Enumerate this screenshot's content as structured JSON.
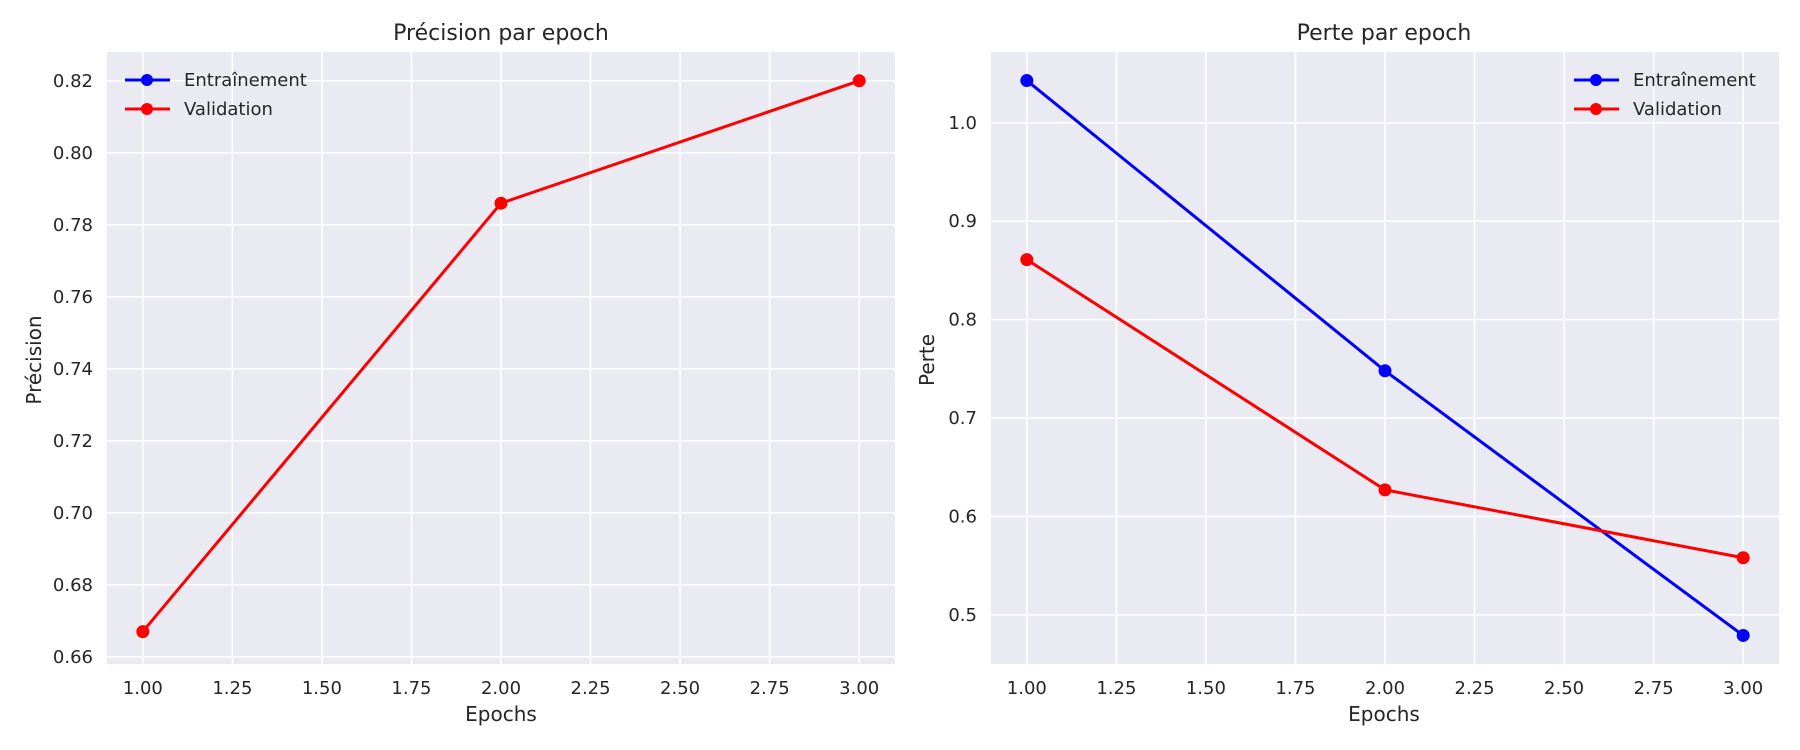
{
  "chart_data": [
    {
      "type": "line",
      "title": "Précision par epoch",
      "xlabel": "Epochs",
      "ylabel": "Précision",
      "xlim": [
        0.9,
        3.1
      ],
      "ylim": [
        0.658,
        0.828
      ],
      "x_ticks": [
        "1.00",
        "1.25",
        "1.50",
        "1.75",
        "2.00",
        "2.25",
        "2.50",
        "2.75",
        "3.00"
      ],
      "y_ticks": [
        "0.66",
        "0.68",
        "0.70",
        "0.72",
        "0.74",
        "0.76",
        "0.78",
        "0.80",
        "0.82"
      ],
      "x": [
        1,
        2,
        3
      ],
      "series": [
        {
          "name": "Entraînement",
          "color": "#0000ff",
          "values": [
            null,
            null,
            null
          ]
        },
        {
          "name": "Validation",
          "color": "#ff0000",
          "values": [
            0.667,
            0.786,
            0.82
          ]
        }
      ],
      "legend": "top-left",
      "grid": true
    },
    {
      "type": "line",
      "title": "Perte par epoch",
      "xlabel": "Epochs",
      "ylabel": "Perte",
      "xlim": [
        0.9,
        3.1
      ],
      "ylim": [
        0.45,
        1.072
      ],
      "x_ticks": [
        "1.00",
        "1.25",
        "1.50",
        "1.75",
        "2.00",
        "2.25",
        "2.50",
        "2.75",
        "3.00"
      ],
      "y_ticks": [
        "0.5",
        "0.6",
        "0.7",
        "0.8",
        "0.9",
        "1.0"
      ],
      "x": [
        1,
        2,
        3
      ],
      "series": [
        {
          "name": "Entraînement",
          "color": "#0000ff",
          "values": [
            1.043,
            0.748,
            0.479
          ]
        },
        {
          "name": "Validation",
          "color": "#ff0000",
          "values": [
            0.861,
            0.627,
            0.558
          ]
        }
      ],
      "legend": "top-right",
      "grid": true
    }
  ],
  "colors": {
    "plot_background": "#eaeaf2",
    "grid": "#ffffff",
    "text": "#262626"
  }
}
